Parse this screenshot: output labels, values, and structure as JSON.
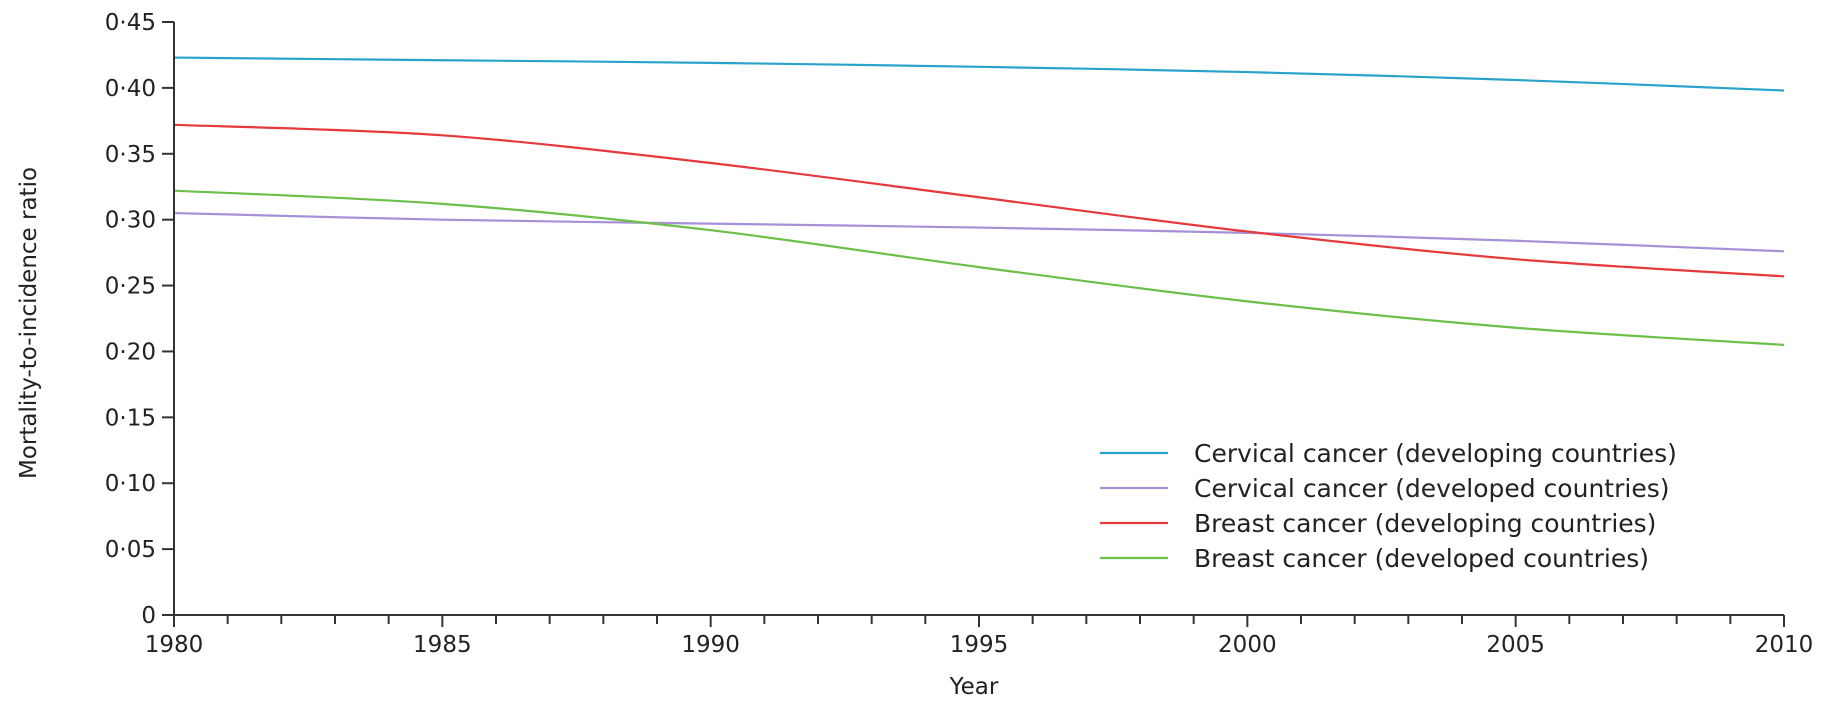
{
  "chart_data": {
    "type": "line",
    "xlabel": "Year",
    "ylabel": "Mortality-to-incidence ratio",
    "xlim": [
      1980,
      2010
    ],
    "ylim": [
      0,
      0.45
    ],
    "x_ticks": [
      "1980",
      "1985",
      "1990",
      "1995",
      "2000",
      "2005",
      "2010"
    ],
    "y_ticks": [
      "0",
      "0·05",
      "0·10",
      "0·15",
      "0·20",
      "0·25",
      "0·30",
      "0·35",
      "0·40",
      "0·45"
    ],
    "legend_position": "bottom-right",
    "x": [
      1980,
      1985,
      1990,
      1995,
      2000,
      2005,
      2010
    ],
    "series": [
      {
        "name": "Cervical cancer (developing countries)",
        "color": "#29a3c9",
        "values": [
          0.423,
          0.421,
          0.419,
          0.416,
          0.412,
          0.406,
          0.398
        ]
      },
      {
        "name": "Cervical cancer (developed countries)",
        "color": "#a690d6",
        "values": [
          0.305,
          0.3,
          0.297,
          0.294,
          0.29,
          0.284,
          0.276
        ]
      },
      {
        "name": "Breast cancer (developing countries)",
        "color": "#e5393b",
        "values": [
          0.372,
          0.364,
          0.343,
          0.317,
          0.291,
          0.27,
          0.257
        ]
      },
      {
        "name": "Breast cancer (developed countries)",
        "color": "#6cc04a",
        "values": [
          0.322,
          0.312,
          0.292,
          0.264,
          0.238,
          0.218,
          0.205
        ]
      }
    ]
  }
}
